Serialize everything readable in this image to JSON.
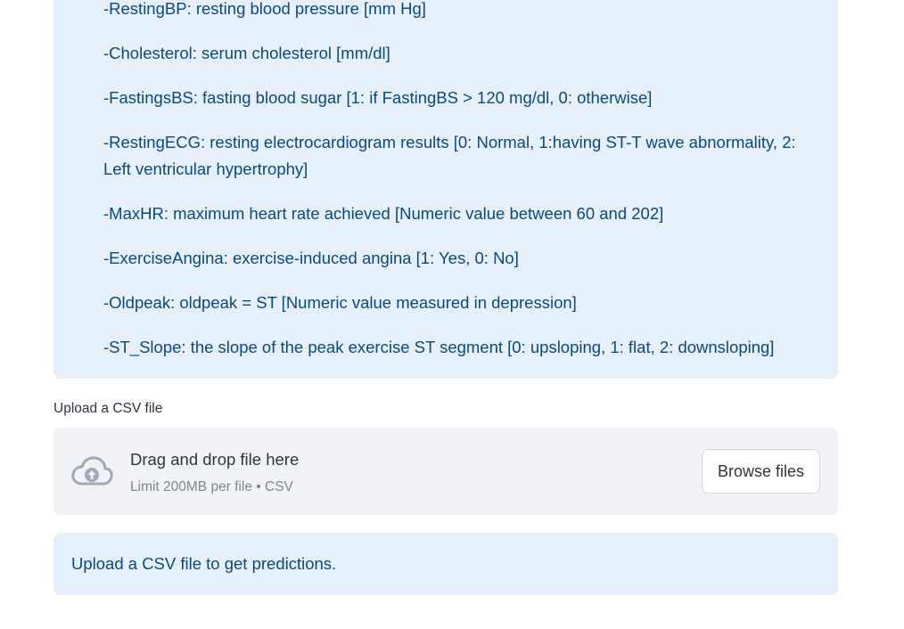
{
  "info": {
    "partial_top_line": "-RestingBP: resting blood pressure [mm Hg]",
    "lines": [
      "-Cholesterol: serum cholesterol [mm/dl]",
      "-FastingsBS: fasting blood sugar [1: if FastingBS > 120 mg/dl, 0: otherwise]",
      "-RestingECG: resting electrocardiogram results [0: Normal, 1:having ST-T wave abnormality, 2: Left ventricular hypertrophy]",
      "-MaxHR: maximum heart rate achieved [Numeric value between 60 and 202]",
      "-ExerciseAngina: exercise-induced angina [1: Yes, 0: No]",
      "-Oldpeak: oldpeak = ST [Numeric value measured in depression]",
      "-ST_Slope: the slope of the peak exercise ST segment [0: upsloping, 1: flat, 2: downsloping]"
    ]
  },
  "uploader": {
    "label": "Upload a CSV file",
    "drop_title": "Drag and drop file here",
    "drop_limit": "Limit 200MB per file • CSV",
    "browse_label": "Browse files",
    "icon": "cloud-upload-icon"
  },
  "notice": {
    "text": "Upload a CSV file to get predictions."
  },
  "colors": {
    "info_bg": "#e6f0fb",
    "info_text": "#0a4a7a",
    "dropzone_bg": "#f0f2f6",
    "muted_text": "#808495",
    "icon_color": "#a3a8b8"
  }
}
